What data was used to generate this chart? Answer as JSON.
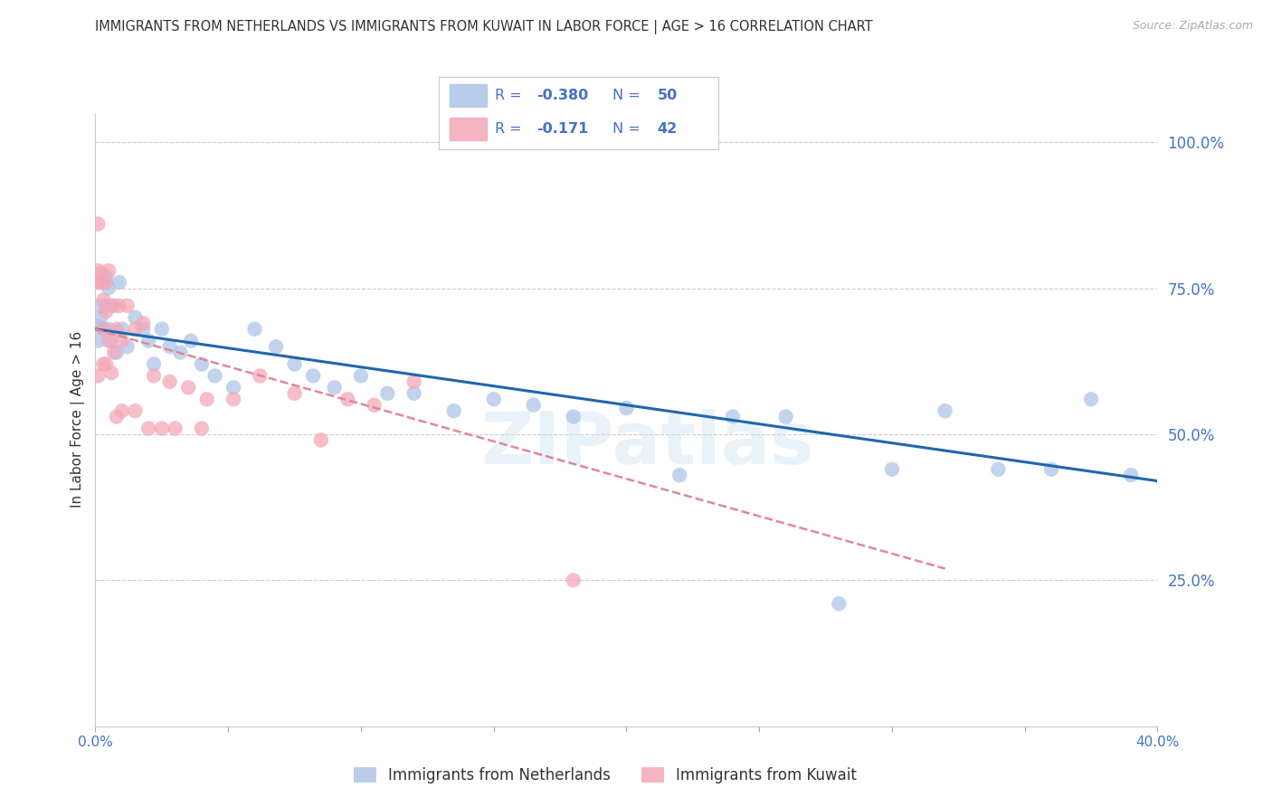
{
  "title": "IMMIGRANTS FROM NETHERLANDS VS IMMIGRANTS FROM KUWAIT IN LABOR FORCE | AGE > 16 CORRELATION CHART",
  "source": "Source: ZipAtlas.com",
  "ylabel": "In Labor Force | Age > 16",
  "xmin": 0.0,
  "xmax": 0.4,
  "ymin": 0.0,
  "ymax": 1.05,
  "yticks": [
    0.25,
    0.5,
    0.75,
    1.0
  ],
  "ytick_labels": [
    "25.0%",
    "50.0%",
    "75.0%",
    "100.0%"
  ],
  "xticks": [
    0.0,
    0.05,
    0.1,
    0.15,
    0.2,
    0.25,
    0.3,
    0.35,
    0.4
  ],
  "xtick_labels": [
    "0.0%",
    "",
    "",
    "",
    "",
    "",
    "",
    "",
    "40.0%"
  ],
  "blue_scatter_color": "#aec6e8",
  "pink_scatter_color": "#f4a8b8",
  "blue_line_color": "#2166ac",
  "pink_line_color": "#e08898",
  "legend_label_blue": "Immigrants from Netherlands",
  "legend_label_pink": "Immigrants from Kuwait",
  "watermark": "ZIPatlas",
  "blue_scatter_x": [
    0.001,
    0.001,
    0.002,
    0.002,
    0.003,
    0.003,
    0.004,
    0.004,
    0.005,
    0.005,
    0.006,
    0.007,
    0.008,
    0.009,
    0.01,
    0.012,
    0.015,
    0.018,
    0.02,
    0.022,
    0.025,
    0.028,
    0.032,
    0.036,
    0.04,
    0.045,
    0.052,
    0.06,
    0.068,
    0.075,
    0.082,
    0.09,
    0.1,
    0.11,
    0.12,
    0.135,
    0.15,
    0.165,
    0.18,
    0.2,
    0.22,
    0.24,
    0.26,
    0.28,
    0.3,
    0.32,
    0.34,
    0.36,
    0.375,
    0.39
  ],
  "blue_scatter_y": [
    0.685,
    0.66,
    0.72,
    0.7,
    0.76,
    0.68,
    0.77,
    0.72,
    0.75,
    0.68,
    0.66,
    0.72,
    0.64,
    0.76,
    0.68,
    0.65,
    0.7,
    0.68,
    0.66,
    0.62,
    0.68,
    0.65,
    0.64,
    0.66,
    0.62,
    0.6,
    0.58,
    0.68,
    0.65,
    0.62,
    0.6,
    0.58,
    0.6,
    0.57,
    0.57,
    0.54,
    0.56,
    0.55,
    0.53,
    0.545,
    0.43,
    0.53,
    0.53,
    0.21,
    0.44,
    0.54,
    0.44,
    0.44,
    0.56,
    0.43
  ],
  "pink_scatter_x": [
    0.001,
    0.001,
    0.001,
    0.002,
    0.002,
    0.003,
    0.003,
    0.004,
    0.004,
    0.005,
    0.005,
    0.006,
    0.007,
    0.008,
    0.009,
    0.01,
    0.012,
    0.015,
    0.018,
    0.022,
    0.028,
    0.035,
    0.042,
    0.052,
    0.062,
    0.075,
    0.085,
    0.095,
    0.105,
    0.12,
    0.001,
    0.003,
    0.004,
    0.006,
    0.008,
    0.01,
    0.015,
    0.02,
    0.025,
    0.03,
    0.04,
    0.18
  ],
  "pink_scatter_y": [
    0.78,
    0.86,
    0.76,
    0.76,
    0.775,
    0.68,
    0.73,
    0.76,
    0.71,
    0.78,
    0.66,
    0.72,
    0.64,
    0.68,
    0.72,
    0.66,
    0.72,
    0.68,
    0.69,
    0.6,
    0.59,
    0.58,
    0.56,
    0.56,
    0.6,
    0.57,
    0.49,
    0.56,
    0.55,
    0.59,
    0.6,
    0.62,
    0.62,
    0.605,
    0.53,
    0.54,
    0.54,
    0.51,
    0.51,
    0.51,
    0.51,
    0.25
  ],
  "background_color": "#ffffff",
  "grid_color": "#cccccc",
  "axis_color": "#4472c4",
  "title_color": "#333333"
}
